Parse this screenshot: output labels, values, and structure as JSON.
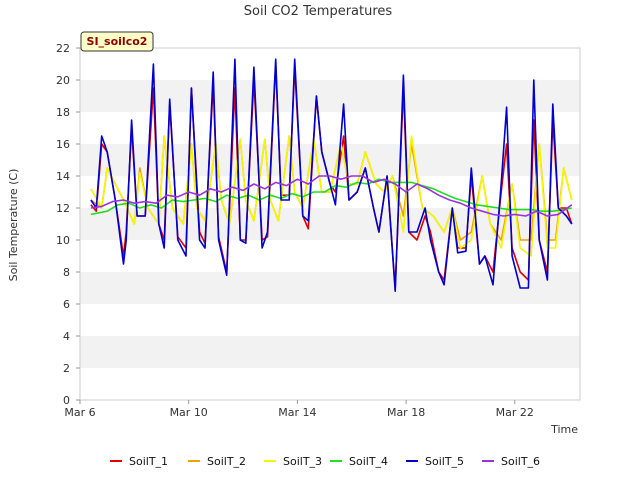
{
  "chart_data": {
    "type": "line",
    "title": "Soil CO2 Temperatures",
    "xlabel": "Time",
    "ylabel": "Soil Temperature (C)",
    "site_label": "SI_soilco2",
    "ylim": [
      0,
      22
    ],
    "yticks": [
      0,
      2,
      4,
      6,
      8,
      10,
      12,
      14,
      16,
      18,
      20,
      22
    ],
    "xlim": [
      6,
      24.4
    ],
    "xticks": [
      {
        "value": 6,
        "label": "Mar 6"
      },
      {
        "value": 10,
        "label": "Mar 10"
      },
      {
        "value": 14,
        "label": "Mar 14"
      },
      {
        "value": 18,
        "label": "Mar 18"
      },
      {
        "value": 22,
        "label": "Mar 22"
      }
    ],
    "grid": "horizontal bands",
    "legend": "bottom",
    "series": [
      {
        "name": "SoilT_1",
        "color": "#dd0000",
        "x": [
          6.4,
          6.6,
          6.8,
          7.0,
          7.3,
          7.6,
          7.7,
          7.9,
          8.1,
          8.4,
          8.7,
          8.9,
          9.1,
          9.3,
          9.6,
          9.9,
          10.1,
          10.4,
          10.6,
          10.9,
          11.1,
          11.4,
          11.7,
          11.9,
          12.1,
          12.4,
          12.7,
          12.9,
          13.2,
          13.4,
          13.7,
          13.9,
          14.2,
          14.4,
          14.7,
          14.9,
          15.2,
          15.4,
          15.7,
          15.9,
          16.2,
          16.5,
          16.8,
          17.0,
          17.3,
          17.6,
          17.9,
          18.1,
          18.4,
          18.7,
          18.9,
          19.2,
          19.4,
          19.7,
          19.9,
          20.2,
          20.4,
          20.7,
          20.9,
          21.2,
          21.5,
          21.7,
          21.9,
          22.2,
          22.5,
          22.7,
          22.9,
          23.2,
          23.4,
          23.6,
          23.9,
          24.1
        ],
        "y": [
          12.2,
          11.8,
          16.0,
          15.5,
          12.5,
          9.0,
          10.5,
          17.0,
          11.5,
          11.5,
          19.5,
          11.0,
          10.0,
          18.5,
          10.2,
          9.5,
          19.5,
          10.5,
          9.8,
          19.8,
          10.2,
          8.0,
          19.5,
          10.0,
          10.0,
          20.0,
          10.0,
          10.2,
          21.0,
          12.8,
          12.8,
          20.8,
          11.5,
          10.7,
          19.0,
          15.5,
          13.5,
          13.0,
          16.5,
          12.5,
          13.0,
          14.5,
          12.0,
          10.5,
          14.0,
          7.0,
          19.5,
          10.5,
          10.0,
          11.5,
          10.5,
          8.0,
          7.5,
          12.0,
          9.5,
          9.5,
          14.0,
          8.5,
          9.0,
          8.0,
          13.0,
          16.0,
          9.5,
          8.0,
          7.5,
          17.5,
          10.0,
          8.0,
          17.5,
          12.0,
          12.0,
          11.0
        ]
      },
      {
        "name": "SoilT_2",
        "color": "#f0a000",
        "x": [
          6.4,
          6.8,
          7.0,
          7.3,
          7.6,
          8.0,
          8.2,
          8.5,
          8.9,
          9.1,
          9.4,
          9.8,
          10.1,
          10.3,
          10.6,
          11.0,
          11.2,
          11.5,
          11.9,
          12.1,
          12.4,
          12.8,
          13.0,
          13.3,
          13.7,
          13.9,
          14.2,
          14.6,
          14.9,
          15.2,
          15.6,
          15.9,
          16.2,
          16.5,
          16.9,
          17.2,
          17.5,
          17.9,
          18.2,
          18.6,
          19.0,
          19.4,
          19.7,
          20.0,
          20.4,
          20.8,
          21.1,
          21.5,
          21.9,
          22.2,
          22.6,
          22.9,
          23.2,
          23.5,
          23.8,
          24.1
        ],
        "y": [
          12.5,
          12.0,
          14.5,
          13.5,
          12.5,
          11.0,
          14.5,
          12.0,
          11.0,
          16.5,
          12.0,
          11.0,
          16.0,
          12.0,
          11.2,
          16.0,
          12.5,
          11.0,
          16.3,
          12.5,
          11.2,
          16.3,
          12.5,
          11.2,
          16.5,
          13.0,
          12.0,
          16.3,
          13.0,
          13.0,
          16.0,
          13.5,
          13.5,
          15.5,
          13.5,
          13.0,
          14.0,
          11.5,
          16.0,
          12.0,
          11.5,
          10.5,
          12.0,
          10.0,
          10.5,
          14.0,
          11.0,
          10.0,
          13.5,
          10.0,
          10.0,
          16.0,
          10.0,
          10.0,
          14.5,
          12.5
        ]
      },
      {
        "name": "SoilT_3",
        "color": "#f5f500",
        "x": [
          6.4,
          6.8,
          7.0,
          7.3,
          7.6,
          8.0,
          8.2,
          8.5,
          8.9,
          9.1,
          9.4,
          9.8,
          10.1,
          10.3,
          10.6,
          11.0,
          11.2,
          11.5,
          11.9,
          12.1,
          12.4,
          12.8,
          13.0,
          13.3,
          13.7,
          13.9,
          14.2,
          14.6,
          14.9,
          15.2,
          15.6,
          15.9,
          16.2,
          16.5,
          16.9,
          17.2,
          17.5,
          17.9,
          18.2,
          18.6,
          19.0,
          19.4,
          19.7,
          20.0,
          20.4,
          20.8,
          21.1,
          21.5,
          21.9,
          22.2,
          22.6,
          22.9,
          23.2,
          23.5,
          23.8,
          24.1
        ],
        "y": [
          13.2,
          12.0,
          14.5,
          13.5,
          12.5,
          11.0,
          14.2,
          12.0,
          11.0,
          16.5,
          12.0,
          11.0,
          16.0,
          12.0,
          11.2,
          16.0,
          12.5,
          11.0,
          16.3,
          12.5,
          11.2,
          16.3,
          12.5,
          11.2,
          16.5,
          13.0,
          12.0,
          16.3,
          13.0,
          13.0,
          16.0,
          13.5,
          13.5,
          15.5,
          13.5,
          13.0,
          14.0,
          10.5,
          16.5,
          12.0,
          11.5,
          10.5,
          12.0,
          9.5,
          10.0,
          14.0,
          11.0,
          9.5,
          13.5,
          9.5,
          9.0,
          16.0,
          9.5,
          9.5,
          14.5,
          12.5
        ]
      },
      {
        "name": "SoilT_4",
        "color": "#22dd22",
        "x": [
          6.4,
          7.0,
          7.4,
          7.8,
          8.2,
          8.6,
          9.0,
          9.4,
          9.8,
          10.2,
          10.6,
          11.0,
          11.4,
          11.8,
          12.2,
          12.6,
          13.0,
          13.4,
          13.8,
          14.2,
          14.6,
          15.0,
          15.4,
          15.8,
          16.2,
          16.6,
          17.0,
          17.4,
          17.8,
          18.2,
          18.6,
          19.0,
          19.4,
          19.8,
          20.2,
          20.6,
          21.0,
          21.4,
          21.8,
          22.2,
          22.6,
          23.0,
          23.4,
          23.8,
          24.1
        ],
        "y": [
          11.6,
          11.8,
          12.2,
          12.3,
          12.0,
          12.2,
          12.0,
          12.5,
          12.4,
          12.5,
          12.6,
          12.4,
          12.8,
          12.6,
          12.8,
          12.5,
          12.8,
          12.6,
          12.9,
          12.7,
          13.0,
          13.0,
          13.4,
          13.3,
          13.6,
          13.5,
          13.8,
          13.6,
          13.6,
          13.6,
          13.4,
          13.2,
          12.9,
          12.6,
          12.4,
          12.2,
          12.1,
          12.0,
          11.9,
          11.9,
          11.9,
          11.8,
          11.8,
          11.9,
          12.0
        ]
      },
      {
        "name": "SoilT_5",
        "color": "#0000cc",
        "x": [
          6.4,
          6.6,
          6.8,
          7.0,
          7.3,
          7.6,
          7.7,
          7.9,
          8.1,
          8.4,
          8.7,
          8.9,
          9.1,
          9.3,
          9.6,
          9.9,
          10.1,
          10.4,
          10.6,
          10.9,
          11.1,
          11.4,
          11.7,
          11.9,
          12.1,
          12.4,
          12.7,
          12.9,
          13.2,
          13.4,
          13.7,
          13.9,
          14.2,
          14.4,
          14.7,
          14.9,
          15.2,
          15.4,
          15.7,
          15.9,
          16.2,
          16.5,
          16.8,
          17.0,
          17.3,
          17.6,
          17.9,
          18.1,
          18.4,
          18.7,
          18.9,
          19.2,
          19.4,
          19.7,
          19.9,
          20.2,
          20.4,
          20.7,
          20.9,
          21.2,
          21.5,
          21.7,
          21.9,
          22.2,
          22.5,
          22.7,
          22.9,
          23.2,
          23.4,
          23.6,
          23.9,
          24.1
        ],
        "y": [
          12.5,
          12.0,
          16.5,
          15.5,
          12.5,
          8.5,
          10.0,
          17.5,
          11.5,
          11.5,
          21.0,
          11.0,
          9.5,
          18.8,
          10.0,
          9.0,
          19.5,
          10.0,
          9.5,
          20.5,
          10.0,
          7.8,
          21.3,
          10.0,
          9.8,
          20.8,
          9.5,
          10.5,
          21.3,
          12.5,
          12.5,
          21.3,
          11.5,
          11.2,
          19.0,
          15.5,
          13.5,
          12.2,
          18.5,
          12.5,
          13.0,
          14.5,
          12.0,
          10.5,
          14.0,
          6.8,
          20.3,
          10.5,
          10.5,
          12.0,
          10.0,
          8.0,
          7.2,
          12.0,
          9.2,
          9.3,
          14.5,
          8.5,
          9.0,
          7.2,
          13.5,
          18.3,
          9.0,
          7.0,
          7.0,
          20.0,
          10.0,
          7.5,
          18.5,
          12.0,
          11.5,
          11.0
        ]
      },
      {
        "name": "SoilT_6",
        "color": "#9933dd",
        "x": [
          6.4,
          6.8,
          7.2,
          7.6,
          8.0,
          8.4,
          8.8,
          9.2,
          9.6,
          10.0,
          10.4,
          10.8,
          11.2,
          11.6,
          12.0,
          12.4,
          12.8,
          13.2,
          13.6,
          14.0,
          14.4,
          14.8,
          15.2,
          15.6,
          16.0,
          16.4,
          16.8,
          17.2,
          17.6,
          18.0,
          18.4,
          18.8,
          19.2,
          19.6,
          20.0,
          20.4,
          20.8,
          21.2,
          21.6,
          22.0,
          22.4,
          22.8,
          23.2,
          23.6,
          24.1
        ],
        "y": [
          12.0,
          12.1,
          12.4,
          12.5,
          12.3,
          12.4,
          12.3,
          12.8,
          12.7,
          13.0,
          12.8,
          13.2,
          13.0,
          13.3,
          13.1,
          13.5,
          13.2,
          13.6,
          13.4,
          13.8,
          13.5,
          14.0,
          14.0,
          13.8,
          14.0,
          14.0,
          13.6,
          13.8,
          13.5,
          13.0,
          13.5,
          13.2,
          12.8,
          12.5,
          12.3,
          12.0,
          11.8,
          11.6,
          11.5,
          11.6,
          11.5,
          11.8,
          11.5,
          11.6,
          12.2
        ]
      }
    ]
  }
}
